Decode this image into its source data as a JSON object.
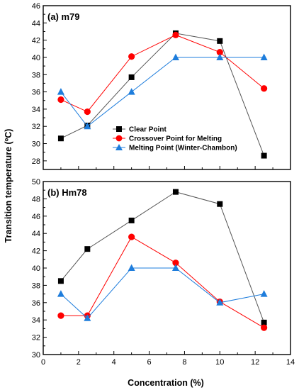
{
  "chart_data": [
    {
      "type": "line",
      "panel_label": "(a) m79",
      "x_ticks": [
        "0",
        "2",
        "4",
        "6",
        "8",
        "10",
        "12",
        "14"
      ],
      "y_ticks": [
        "28",
        "30",
        "32",
        "34",
        "36",
        "38",
        "40",
        "42",
        "44",
        "46"
      ],
      "xlim": [
        0,
        14
      ],
      "ylim": [
        27,
        46
      ],
      "legend_position": "center-right",
      "series": [
        {
          "name": "Clear Point",
          "color": "#000000",
          "line_color": "#555555",
          "marker": "square",
          "x": [
            1,
            2.5,
            5,
            7.5,
            10,
            12.5
          ],
          "y": [
            30.6,
            32.1,
            37.7,
            42.8,
            41.9,
            28.6
          ]
        },
        {
          "name": "Crossover Point for Melting",
          "color": "#ff0000",
          "line_color": "#ff0000",
          "marker": "circle",
          "x": [
            1,
            2.5,
            5,
            7.5,
            10,
            12.5
          ],
          "y": [
            35.1,
            33.7,
            40.1,
            42.6,
            40.6,
            36.4
          ]
        },
        {
          "name": "Melting Point (Winter-Chambon)",
          "color": "#1e7ddc",
          "line_color": "#1e7ddc",
          "marker": "triangle",
          "x": [
            1,
            2.5,
            5,
            7.5,
            10,
            12.5
          ],
          "y": [
            36.0,
            32.0,
            36.0,
            40.0,
            40.0,
            40.0
          ]
        }
      ]
    },
    {
      "type": "line",
      "panel_label": "(b) Hm78",
      "x_ticks": [
        "0",
        "2",
        "4",
        "6",
        "8",
        "10",
        "12",
        "14"
      ],
      "y_ticks": [
        "30",
        "32",
        "34",
        "36",
        "38",
        "40",
        "42",
        "44",
        "46",
        "48",
        "50"
      ],
      "xlim": [
        0,
        14
      ],
      "ylim": [
        30,
        50
      ],
      "series": [
        {
          "name": "Clear Point",
          "color": "#000000",
          "line_color": "#555555",
          "marker": "square",
          "x": [
            1,
            2.5,
            5,
            7.5,
            10,
            12.5
          ],
          "y": [
            38.5,
            42.2,
            45.5,
            48.8,
            47.4,
            33.7
          ]
        },
        {
          "name": "Crossover Point for Melting",
          "color": "#ff0000",
          "line_color": "#ff0000",
          "marker": "circle",
          "x": [
            1,
            2.5,
            5,
            7.5,
            10,
            12.5
          ],
          "y": [
            34.5,
            34.5,
            43.6,
            40.6,
            36.1,
            33.1
          ]
        },
        {
          "name": "Melting Point (Winter-Chambon)",
          "color": "#1e7ddc",
          "line_color": "#1e7ddc",
          "marker": "triangle",
          "x": [
            1,
            2.5,
            5,
            7.5,
            10,
            12.5
          ],
          "y": [
            37.0,
            34.2,
            40.0,
            40.0,
            36.0,
            37.0
          ]
        }
      ]
    }
  ],
  "shared": {
    "ylabel": "Transition temperature (ºC)",
    "xlabel": "Concentration (%)"
  }
}
